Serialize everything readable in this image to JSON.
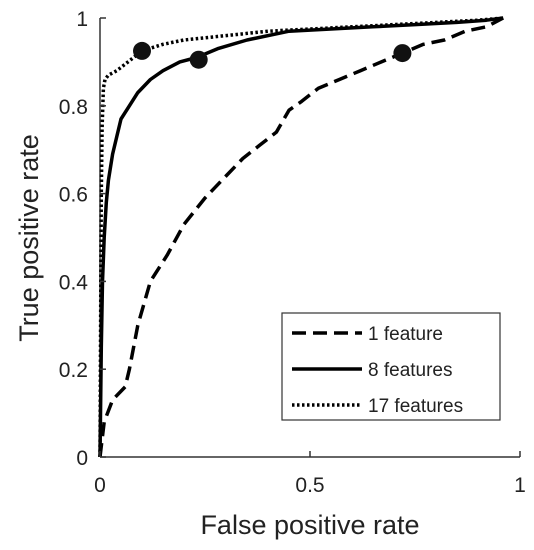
{
  "chart_data": {
    "type": "line",
    "title": "",
    "xlabel": "False positive rate",
    "ylabel": "True positive rate",
    "xlim": [
      0,
      1
    ],
    "ylim": [
      0,
      1
    ],
    "x_ticks": [
      0,
      0.5,
      1
    ],
    "x_tick_labels": [
      "0",
      "0.5",
      "1"
    ],
    "y_ticks": [
      0,
      0.2,
      0.4,
      0.6,
      0.8,
      1
    ],
    "y_tick_labels": [
      "0",
      "0.2",
      "0.4",
      "0.6",
      "0.8",
      "1"
    ],
    "grid": false,
    "legend_position": "bottom-right",
    "series": [
      {
        "name": "1 feature",
        "style": "dashed",
        "color": "#000000",
        "x": [
          0,
          0.01,
          0.03,
          0.06,
          0.07,
          0.09,
          0.12,
          0.16,
          0.2,
          0.25,
          0.3,
          0.34,
          0.38,
          0.42,
          0.45,
          0.48,
          0.52,
          0.57,
          0.62,
          0.67,
          0.72,
          0.77,
          0.82,
          0.87,
          0.92,
          0.96
        ],
        "y": [
          0,
          0.08,
          0.13,
          0.16,
          0.2,
          0.3,
          0.4,
          0.46,
          0.53,
          0.59,
          0.64,
          0.68,
          0.71,
          0.74,
          0.79,
          0.81,
          0.84,
          0.86,
          0.88,
          0.9,
          0.92,
          0.94,
          0.95,
          0.97,
          0.98,
          1.0
        ],
        "marker": {
          "x": 0.72,
          "y": 0.92
        }
      },
      {
        "name": "8 features",
        "style": "solid",
        "color": "#000000",
        "x": [
          0,
          0.003,
          0.006,
          0.01,
          0.015,
          0.02,
          0.03,
          0.04,
          0.05,
          0.07,
          0.09,
          0.12,
          0.15,
          0.19,
          0.23,
          0.28,
          0.35,
          0.45,
          0.55,
          0.65,
          0.75,
          0.85,
          0.92,
          0.96
        ],
        "y": [
          0,
          0.25,
          0.4,
          0.5,
          0.58,
          0.63,
          0.69,
          0.73,
          0.77,
          0.8,
          0.83,
          0.86,
          0.88,
          0.9,
          0.91,
          0.93,
          0.95,
          0.97,
          0.975,
          0.98,
          0.985,
          0.99,
          0.995,
          1.0
        ],
        "marker": {
          "x": 0.235,
          "y": 0.905
        }
      },
      {
        "name": "17 features",
        "style": "dotted",
        "color": "#000000",
        "x": [
          0,
          0.001,
          0.002,
          0.003,
          0.005,
          0.008,
          0.012,
          0.02,
          0.04,
          0.06,
          0.1,
          0.15,
          0.2,
          0.3,
          0.4,
          0.5,
          0.6,
          0.7,
          0.8,
          0.9,
          0.96
        ],
        "y": [
          0,
          0.2,
          0.4,
          0.6,
          0.75,
          0.84,
          0.86,
          0.87,
          0.88,
          0.895,
          0.925,
          0.94,
          0.95,
          0.96,
          0.97,
          0.975,
          0.98,
          0.985,
          0.99,
          0.995,
          1.0
        ],
        "marker": {
          "x": 0.1,
          "y": 0.925
        }
      }
    ]
  }
}
